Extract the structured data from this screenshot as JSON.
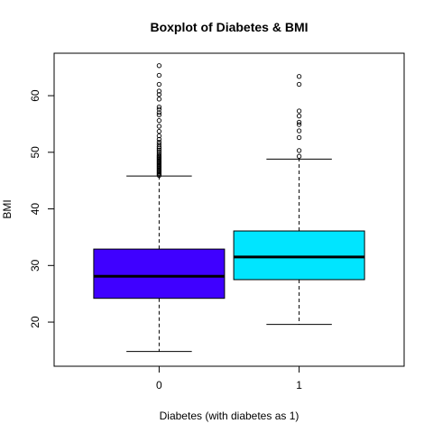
{
  "chart_data": {
    "type": "boxplot",
    "title": "Boxplot of Diabetes & BMI",
    "xlabel": "Diabetes (with diabetes as 1)",
    "ylabel": "BMI",
    "categories": [
      "0",
      "1"
    ],
    "ylim": [
      12.2,
      67.5
    ],
    "yticks": [
      20,
      30,
      40,
      50,
      60
    ],
    "grid": false,
    "boxes": [
      {
        "category": "0",
        "color": "#3f00ff",
        "whisker_low": 14.8,
        "q1": 24.2,
        "median": 28.1,
        "q3": 32.9,
        "whisker_high": 45.8,
        "outliers": [
          45.9,
          46.1,
          46.3,
          46.5,
          46.7,
          46.9,
          47.1,
          47.3,
          47.5,
          47.7,
          47.9,
          48.1,
          48.3,
          48.5,
          48.7,
          48.9,
          49.1,
          49.3,
          49.5,
          49.8,
          50.1,
          50.4,
          50.7,
          51.0,
          51.4,
          51.8,
          52.3,
          52.9,
          53.7,
          54.6,
          55.6,
          56.6,
          57.0,
          57.6,
          58.0,
          59.4,
          60.2,
          60.8,
          62.0,
          63.6,
          65.3
        ]
      },
      {
        "category": "1",
        "color": "#00e5ff",
        "whisker_low": 19.6,
        "q1": 27.5,
        "median": 31.5,
        "q3": 36.1,
        "whisker_high": 48.8,
        "outliers": [
          49.3,
          50.3,
          52.6,
          53.8,
          54.9,
          55.3,
          56.4,
          57.3,
          62.0,
          63.4
        ]
      }
    ]
  }
}
